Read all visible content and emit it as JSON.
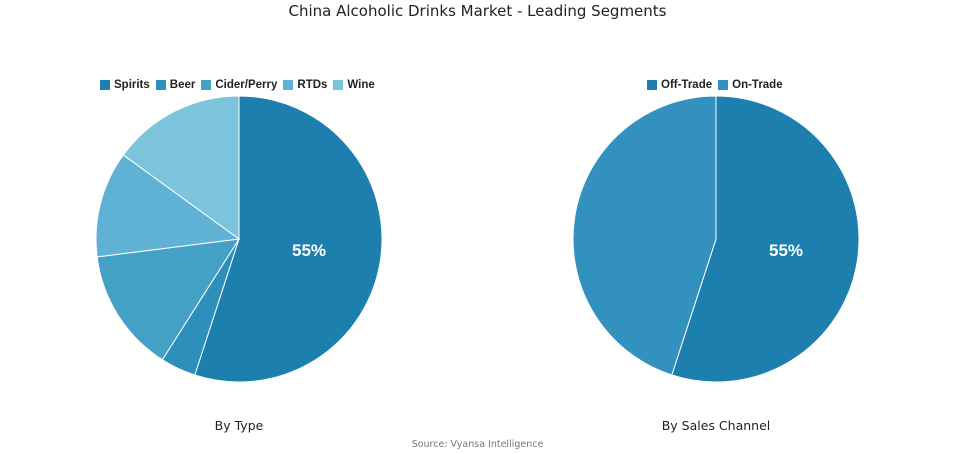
{
  "title": "China Alcoholic Drinks Market - Leading Segments",
  "source": "Source: Vyansa Intelligence",
  "chart_data": [
    {
      "type": "pie",
      "subtitle": "By Type",
      "legend_position": "top",
      "slices": [
        {
          "label": "Spirits",
          "value": 55,
          "color": "#1c7fae",
          "display_label": "55%"
        },
        {
          "label": "Beer",
          "value": 4,
          "color": "#2e8fbb",
          "display_label": ""
        },
        {
          "label": "Cider/Perry",
          "value": 14,
          "color": "#45a0c6",
          "display_label": ""
        },
        {
          "label": "RTDs",
          "value": 12,
          "color": "#5fb2d3",
          "display_label": ""
        },
        {
          "label": "Wine",
          "value": 15,
          "color": "#7cc3dc",
          "display_label": ""
        }
      ]
    },
    {
      "type": "pie",
      "subtitle": "By Sales Channel",
      "legend_position": "top",
      "slices": [
        {
          "label": "Off-Trade",
          "value": 55,
          "color": "#1c7fae",
          "display_label": "55%"
        },
        {
          "label": "On-Trade",
          "value": 45,
          "color": "#3291be",
          "display_label": ""
        }
      ]
    }
  ]
}
